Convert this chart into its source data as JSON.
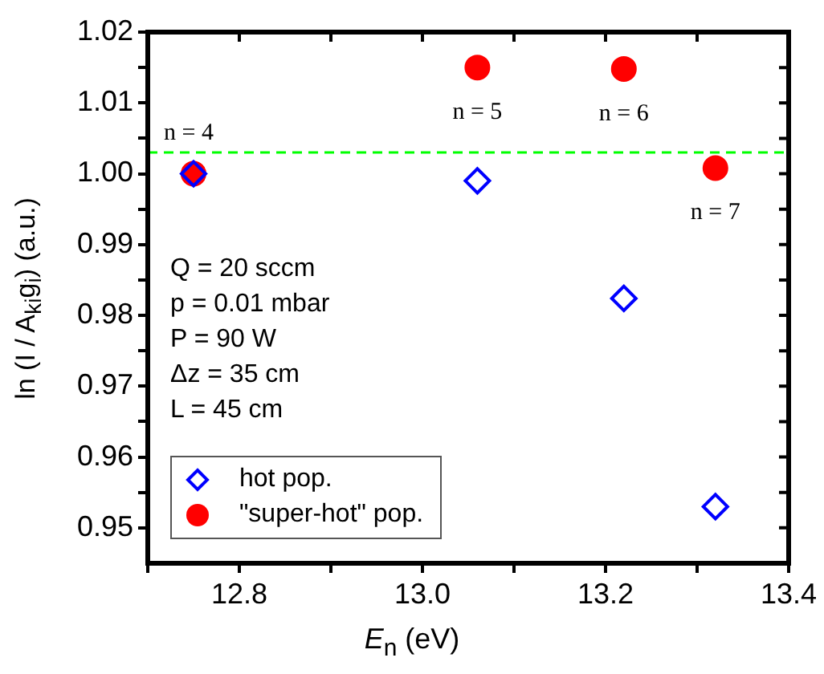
{
  "chart_data": {
    "type": "scatter",
    "xlabel": "E$_{n}$ (eV)",
    "ylabel": "ln (I / A$_{ki}$g$_{i}$) (a.u.)",
    "xlim": [
      12.7,
      13.4
    ],
    "xticks": [
      {
        "value": 12.7,
        "label": null
      },
      12.8,
      {
        "value": 12.9,
        "label": null
      },
      "13.0",
      {
        "value": 13.1,
        "label": null
      },
      13.2,
      {
        "value": 13.3,
        "label": null
      },
      13.4
    ],
    "ylim": [
      0.945,
      1.02
    ],
    "yticks": [
      0.95,
      {
        "value": 0.955,
        "label": null
      },
      0.96,
      {
        "value": 0.965,
        "label": null
      },
      0.97,
      {
        "value": 0.975,
        "label": null
      },
      0.98,
      {
        "value": 0.985,
        "label": null
      },
      0.99,
      {
        "value": 0.995,
        "label": null
      },
      "1.00",
      {
        "value": 1.005,
        "label": null
      },
      1.01,
      {
        "value": 1.015,
        "label": null
      },
      1.02
    ],
    "x": [
      12.75,
      13.06,
      13.22,
      13.32
    ],
    "series": [
      {
        "name": "hot pop.",
        "color": "#0000ff",
        "marker": "diamond",
        "values": [
          1.0,
          0.999,
          0.9824,
          0.953
        ]
      },
      {
        "name": "\"super-hot\" pop.",
        "color": "#ff0000",
        "marker": "circle",
        "values": [
          1.0,
          1.015,
          1.0148,
          1.0008
        ]
      }
    ],
    "ref_lines": [
      {
        "axis": "y",
        "value": 1.003,
        "color": "#00ff00",
        "line_style": "dashed"
      }
    ],
    "annotations": [
      {
        "text": "n = 4",
        "x": 12.75,
        "y": 1.0
      },
      {
        "text": "n = 5",
        "x": 13.06,
        "y": 1.015
      },
      {
        "text": "n = 6",
        "x": 13.22,
        "y": 1.0148
      },
      {
        "text": "n = 7",
        "x": 13.32,
        "y": 1.0008
      },
      "Q = 20 sccm",
      "p = 0.01 mbar",
      "P = 90 W",
      "Δz = 35 cm",
      "L = 45 cm"
    ],
    "legend": "bottom left",
    "grid": false
  }
}
